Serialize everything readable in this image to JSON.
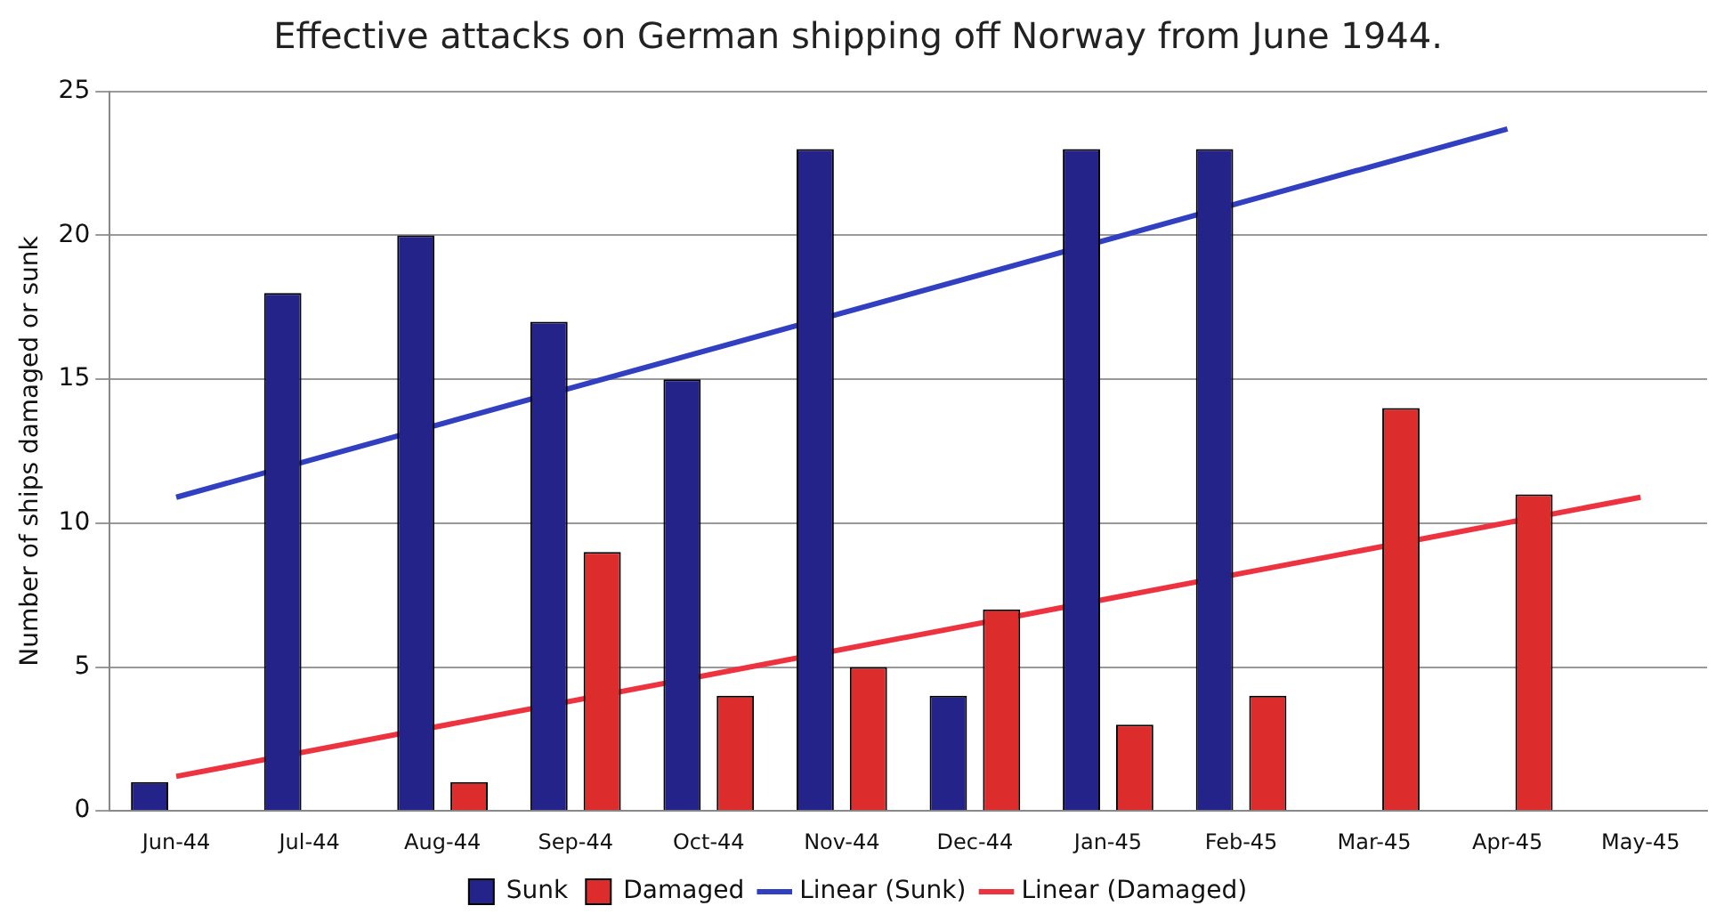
{
  "chart_data": {
    "type": "bar",
    "title": "Effective attacks on German shipping off Norway from June 1944.",
    "ylabel": "Number of ships damaged or sunk",
    "categories": [
      "Jun-44",
      "Jul-44",
      "Aug-44",
      "Sep-44",
      "Oct-44",
      "Nov-44",
      "Dec-44",
      "Jan-45",
      "Feb-45",
      "Mar-45",
      "Apr-45",
      "May-45"
    ],
    "series": [
      {
        "name": "Sunk",
        "color": "#23238a",
        "values": [
          1,
          18,
          20,
          17,
          15,
          23,
          4,
          23,
          23,
          null,
          null,
          null
        ]
      },
      {
        "name": "Damaged",
        "color": "#dd2c2c",
        "values": [
          null,
          null,
          1,
          9,
          4,
          5,
          7,
          3,
          4,
          14,
          11,
          null
        ]
      },
      {
        "name": "Linear (Sunk)",
        "type": "line",
        "color": "#3040c0",
        "x": [
          "Jun-44",
          "Apr-45"
        ],
        "values": [
          10.9,
          23.7
        ]
      },
      {
        "name": "Linear (Damaged)",
        "type": "line",
        "color": "#ee3340",
        "x": [
          "Jun-44",
          "May-45"
        ],
        "values": [
          1.2,
          10.9
        ]
      }
    ],
    "ylim": [
      0,
      25
    ],
    "yticks": [
      0,
      5,
      10,
      15,
      20,
      25
    ],
    "grid": "y",
    "legend": "bottom",
    "marker": "none",
    "line_style": "solid"
  }
}
